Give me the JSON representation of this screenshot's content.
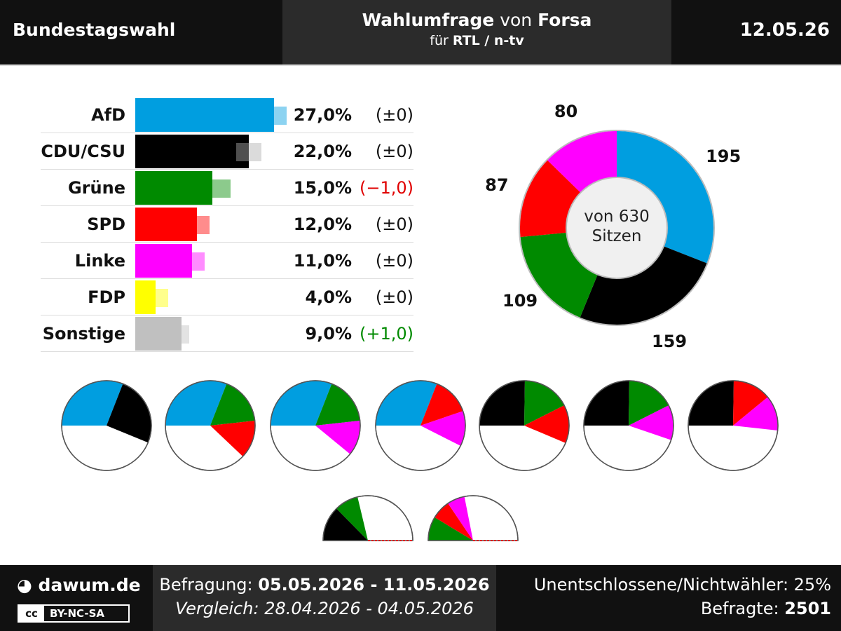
{
  "header": {
    "left": "Bundestagswahl",
    "title_prefix": "Wahlumfrage",
    "title_middle": "von",
    "title_institute": "Forsa",
    "subtitle_prefix": "für",
    "subtitle_client": "RTL / n-tv",
    "date": "12.05.26"
  },
  "colors": {
    "AfD": "#009ee0",
    "CDU/CSU": "#000000",
    "Grüne": "#008a00",
    "SPD": "#ff0000",
    "Linke": "#ff00ff",
    "FDP": "#ffff00",
    "Sonstige": "#c0c0c0",
    "diff_negative": "#e00000",
    "diff_positive": "#008a00"
  },
  "chart_data": [
    {
      "type": "bar",
      "categories": [
        "AfD",
        "CDU/CSU",
        "Grüne",
        "SPD",
        "Linke",
        "FDP",
        "Sonstige"
      ],
      "values": [
        27.0,
        22.0,
        15.0,
        12.0,
        11.0,
        4.0,
        9.0
      ],
      "previous": [
        27.0,
        22.0,
        16.0,
        12.0,
        11.0,
        4.0,
        8.0
      ],
      "value_labels": [
        "27,0%",
        "22,0%",
        "15,0%",
        "12,0%",
        "11,0%",
        "4,0%",
        "9,0%"
      ],
      "diff_labels": [
        "(±0)",
        "(±0)",
        "(−1,0)",
        "(±0)",
        "(±0)",
        "(±0)",
        "(+1,0)"
      ],
      "diff_sign": [
        0,
        0,
        -1,
        0,
        0,
        0,
        1
      ]
    },
    {
      "type": "pie",
      "categories": [
        "AfD",
        "CDU/CSU",
        "Grüne",
        "SPD",
        "Linke"
      ],
      "values": [
        195,
        159,
        109,
        87,
        80
      ],
      "total": 630,
      "center_line1": "von 630",
      "center_line2": "Sitzen"
    },
    {
      "type": "pie",
      "title": "",
      "coalitions": [
        [
          "AfD",
          "CDU/CSU"
        ],
        [
          "AfD",
          "Grüne",
          "SPD"
        ],
        [
          "AfD",
          "Grüne",
          "Linke"
        ],
        [
          "AfD",
          "SPD",
          "Linke"
        ],
        [
          "CDU/CSU",
          "Grüne",
          "SPD"
        ],
        [
          "CDU/CSU",
          "Grüne",
          "Linke"
        ],
        [
          "CDU/CSU",
          "SPD",
          "Linke"
        ],
        [
          "CDU/CSU",
          "Grüne"
        ],
        [
          "Grüne",
          "SPD",
          "Linke"
        ]
      ]
    }
  ],
  "footer": {
    "logo": "dawum.de",
    "license": "BY-NC-SA",
    "license_badge": "cc",
    "survey_label": "Befragung:",
    "survey_range": "05.05.2026 - 11.05.2026",
    "compare_label": "Vergleich:",
    "compare_range": "28.04.2026 - 04.05.2026",
    "undecided": "Unentschlossene/Nichtwähler: 25%",
    "respondents_label": "Befragte:",
    "respondents": "2501"
  }
}
